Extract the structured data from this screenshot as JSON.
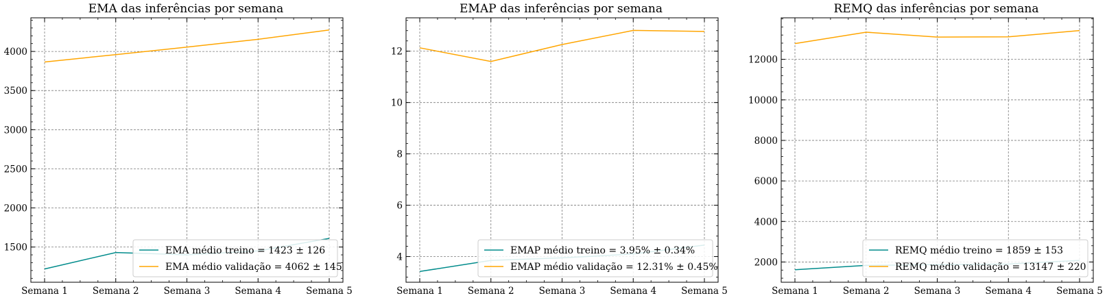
{
  "colors": {
    "train": "#008b8b",
    "validation": "#ffa500"
  },
  "chart_data": [
    {
      "type": "line",
      "title": "EMA das inferências por semana",
      "categories": [
        "Semana 1",
        "Semana 2",
        "Semana 3",
        "Semana 4",
        "Semana 5"
      ],
      "yticks": [
        1500,
        2000,
        2500,
        3000,
        3500,
        4000
      ],
      "ylim": [
        1050,
        4430
      ],
      "grid": true,
      "legend_position": "lower-right",
      "series": [
        {
          "name": "EMA médio treino = 1423 ± 126",
          "values": [
            1220,
            1430,
            1400,
            1450,
            1610
          ]
        },
        {
          "name": "EMA médio validação = 4062 ± 145",
          "values": [
            3865,
            3960,
            4055,
            4155,
            4275
          ]
        }
      ]
    },
    {
      "type": "line",
      "title": "EMAP das inferências por semana",
      "categories": [
        "Semana 1",
        "Semana 2",
        "Semana 3",
        "Semana 4",
        "Semana 5"
      ],
      "yticks": [
        4,
        6,
        8,
        10,
        12
      ],
      "ylim": [
        3.0,
        13.3
      ],
      "grid": true,
      "legend_position": "lower-right",
      "series": [
        {
          "name": "EMAP médio treino = 3.95% ± 0.34%",
          "values": [
            3.42,
            3.85,
            3.95,
            4.1,
            4.45
          ]
        },
        {
          "name": "EMAP médio validação = 12.31% ± 0.45%",
          "values": [
            12.13,
            11.6,
            12.26,
            12.81,
            12.77
          ]
        }
      ]
    },
    {
      "type": "line",
      "title": "REMQ das inferências por semana",
      "categories": [
        "Semana 1",
        "Semana 2",
        "Semana 3",
        "Semana 4",
        "Semana 5"
      ],
      "yticks": [
        2000,
        4000,
        6000,
        8000,
        10000,
        12000
      ],
      "ylim": [
        1000,
        14050
      ],
      "grid": true,
      "legend_position": "lower-right",
      "series": [
        {
          "name": "REMQ médio treino = 1859 ± 153",
          "values": [
            1620,
            1830,
            1870,
            1900,
            2080
          ]
        },
        {
          "name": "REMQ médio validação = 13147 ± 220",
          "values": [
            12780,
            13340,
            13100,
            13110,
            13420
          ]
        }
      ]
    }
  ]
}
